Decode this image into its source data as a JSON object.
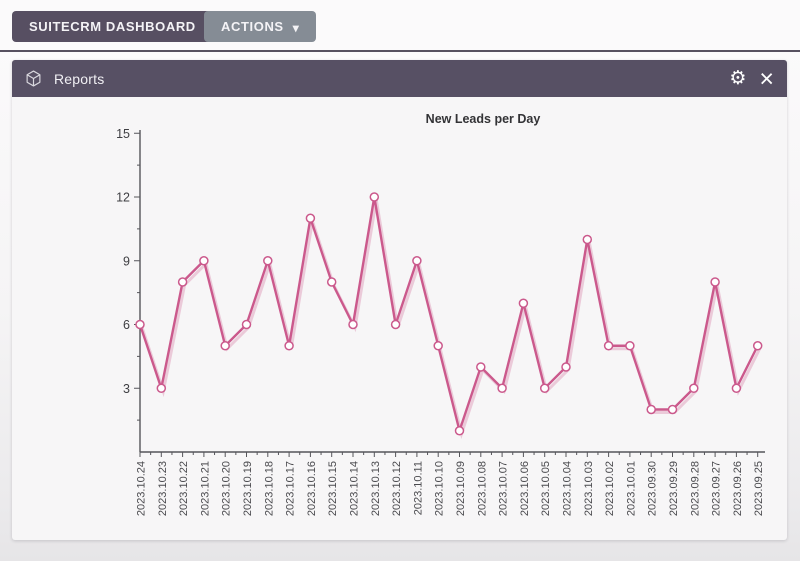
{
  "toolbar": {
    "dashboard_button": "SUITECRM DASHBOARD",
    "actions_button": "ACTIONS"
  },
  "panel": {
    "title": "Reports"
  },
  "icons": {
    "module_icon": "cube-outline",
    "settings_icon": "⚙",
    "close_icon": "×",
    "caret_down_icon": "▾"
  },
  "colors": {
    "header_bg": "#575064",
    "dashboard_button_bg": "#574f62",
    "actions_button_bg": "#858c95",
    "line": "#cb598c",
    "marker_fill": "#ffffff"
  },
  "chart_data": {
    "type": "line",
    "title": "New Leads per Day",
    "xlabel": "",
    "ylabel": "",
    "x": [
      "2023.10.24",
      "2023.10.23",
      "2023.10.22",
      "2023.10.21",
      "2023.10.20",
      "2023.10.19",
      "2023.10.18",
      "2023.10.17",
      "2023.10.16",
      "2023.10.15",
      "2023.10.14",
      "2023.10.13",
      "2023.10.12",
      "2023.10.11",
      "2023.10.10",
      "2023.10.09",
      "2023.10.08",
      "2023.10.07",
      "2023.10.06",
      "2023.10.05",
      "2023.10.04",
      "2023.10.03",
      "2023.10.02",
      "2023.10.01",
      "2023.09.30",
      "2023.09.29",
      "2023.09.28",
      "2023.09.27",
      "2023.09.26",
      "2023.09.25"
    ],
    "values": [
      6,
      3,
      8,
      9,
      5,
      6,
      9,
      5,
      11,
      8,
      6,
      12,
      6,
      9,
      5,
      1,
      4,
      3,
      7,
      3,
      4,
      10,
      5,
      5,
      2,
      2,
      3,
      8,
      3,
      5
    ],
    "ylim": [
      0,
      15
    ],
    "yticks": [
      3,
      6,
      9,
      12,
      15
    ],
    "grid": false,
    "legend": "none",
    "x_label_rotation": -90,
    "line_color": "#cb598c",
    "marker_fill": "#ffffff"
  }
}
